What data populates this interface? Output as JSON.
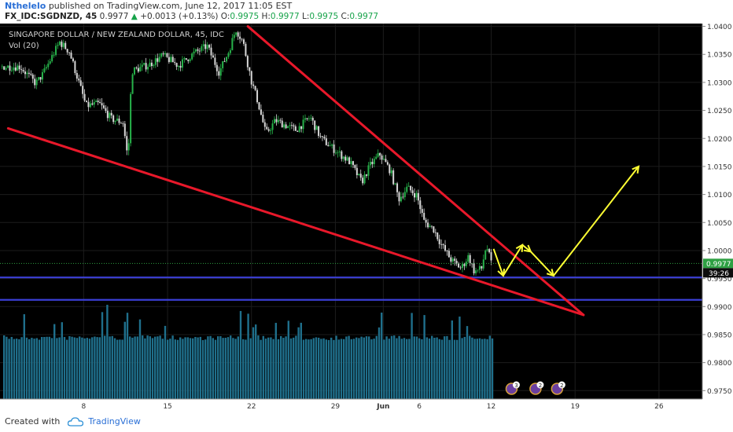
{
  "header": {
    "author": "Nthelelo",
    "published_text": " published on TradingView.com, June 12, 2017 11:05 EST",
    "symbol": "FX_IDC:SGDNZD, 45",
    "last": "0.9977",
    "up_arrow": "▲",
    "change": "+0.0013 (+0.13%)",
    "o_label": "O:",
    "o_value": "0.9975",
    "h_label": "H:",
    "h_value": "0.9977",
    "l_label": "L:",
    "l_value": "0.9975",
    "c_label": "C:",
    "c_value": "0.9977"
  },
  "footer": {
    "created_with": "Created with",
    "brand": "TradingView",
    "logo_icon": "cloud-icon"
  },
  "colors": {
    "background": "#000000",
    "trendline": "#e8182a",
    "arrow": "#ffff33",
    "support": "#3b3fd6",
    "volume": "#1f6f8b",
    "last_price": "#2ea043"
  },
  "chart_data": {
    "type": "candlestick",
    "title": "SINGAPORE DOLLAR / NEW ZEALAND DOLLAR, 45, IDC",
    "volume_label": "Vol (20)",
    "y_ticks": [
      "1.0400",
      "1.0350",
      "1.0300",
      "1.0250",
      "1.0200",
      "1.0150",
      "1.0100",
      "1.0050",
      "1.0000",
      "0.9950",
      "0.9900",
      "0.9850",
      "0.9800",
      "0.9750"
    ],
    "ylim": [
      0.9735,
      1.0405
    ],
    "x_ticks": [
      "8",
      "15",
      "22",
      "29",
      "Jun",
      "6",
      "12",
      "19",
      "26"
    ],
    "last_price": "0.9977",
    "countdown": "39:26",
    "price_path": [
      {
        "d": 2.0,
        "p": 1.0328
      },
      {
        "d": 3.3,
        "p": 1.0298
      },
      {
        "d": 3.9,
        "p": 1.0315
      },
      {
        "d": 5.3,
        "p": 1.0372
      },
      {
        "d": 6.1,
        "p": 1.0355
      },
      {
        "d": 6.9,
        "p": 1.03
      },
      {
        "d": 7.5,
        "p": 1.0258
      },
      {
        "d": 8.6,
        "p": 1.0262
      },
      {
        "d": 9.6,
        "p": 1.0235
      },
      {
        "d": 10.6,
        "p": 1.0228
      },
      {
        "d": 11.0,
        "p": 1.016
      },
      {
        "d": 11.3,
        "p": 1.032
      },
      {
        "d": 12.8,
        "p": 1.0332
      },
      {
        "d": 13.9,
        "p": 1.0348
      },
      {
        "d": 15.2,
        "p": 1.033
      },
      {
        "d": 16.5,
        "p": 1.0352
      },
      {
        "d": 17.6,
        "p": 1.0365
      },
      {
        "d": 18.6,
        "p": 1.0318
      },
      {
        "d": 19.4,
        "p": 1.0355
      },
      {
        "d": 20.0,
        "p": 1.0395
      },
      {
        "d": 20.6,
        "p": 1.0372
      },
      {
        "d": 21.3,
        "p": 1.0302
      },
      {
        "d": 21.8,
        "p": 1.0268
      },
      {
        "d": 22.5,
        "p": 1.0208
      },
      {
        "d": 23.3,
        "p": 1.0232
      },
      {
        "d": 25.0,
        "p": 1.0215
      },
      {
        "d": 26.2,
        "p": 1.0238
      },
      {
        "d": 27.1,
        "p": 1.02
      },
      {
        "d": 28.1,
        "p": 1.0182
      },
      {
        "d": 29.5,
        "p": 1.0158
      },
      {
        "d": 30.5,
        "p": 1.0122
      },
      {
        "d": 31.2,
        "p": 1.0152
      },
      {
        "d": 32.0,
        "p": 1.0172
      },
      {
        "d": 32.9,
        "p": 1.0142
      },
      {
        "d": 33.6,
        "p": 1.0092
      },
      {
        "d": 34.3,
        "p": 1.0112
      },
      {
        "d": 35.1,
        "p": 1.0098
      },
      {
        "d": 35.7,
        "p": 1.0052
      },
      {
        "d": 36.5,
        "p": 1.0038
      },
      {
        "d": 37.2,
        "p": 1.0008
      },
      {
        "d": 38.0,
        "p": 0.9982
      },
      {
        "d": 38.8,
        "p": 0.9968
      },
      {
        "d": 39.4,
        "p": 0.999
      },
      {
        "d": 39.9,
        "p": 0.9962
      },
      {
        "d": 40.5,
        "p": 0.9968
      },
      {
        "d": 40.9,
        "p": 1.001
      },
      {
        "d": 41.3,
        "p": 0.9977
      }
    ],
    "trendlines": [
      {
        "name": "upper-resistance-line",
        "from": {
          "d": 21.0,
          "p": 1.04
        },
        "to": {
          "d": 49.0,
          "p": 0.9885
        }
      },
      {
        "name": "lower-support-line",
        "from": {
          "d": 1.0,
          "p": 1.0218
        },
        "to": {
          "d": 49.0,
          "p": 0.9885
        }
      }
    ],
    "horizontal_lines": [
      0.9952,
      0.9912
    ],
    "projection_path": [
      {
        "d": 41.5,
        "p": 1.0003
      },
      {
        "d": 42.3,
        "p": 0.9955
      },
      {
        "d": 43.9,
        "p": 1.001
      },
      {
        "d": 44.6,
        "p": 0.9998
      },
      {
        "d": 46.5,
        "p": 0.9955
      },
      {
        "d": 53.6,
        "p": 1.015
      }
    ],
    "volume_badges": [
      {
        "d": 43.0,
        "value": "3"
      },
      {
        "d": 45.0,
        "value": "2"
      },
      {
        "d": 46.8,
        "value": "2"
      }
    ]
  }
}
